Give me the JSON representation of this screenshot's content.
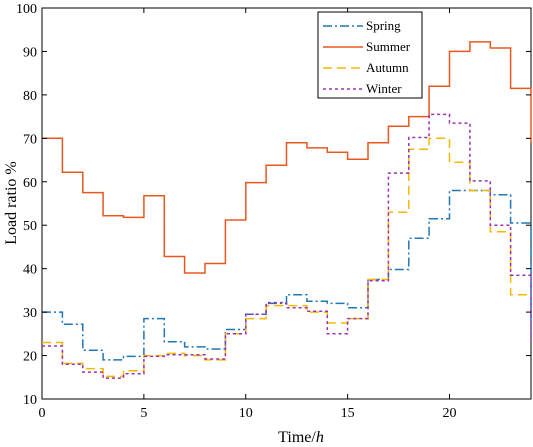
{
  "chart_data": {
    "type": "line",
    "step": true,
    "xlabel": "Time/",
    "xlabel_unit": "h",
    "ylabel": "Load ratio %",
    "xlim": [
      0,
      24
    ],
    "ylim": [
      10,
      100
    ],
    "xticks": [
      0,
      5,
      10,
      15,
      20
    ],
    "yticks": [
      10,
      20,
      30,
      40,
      50,
      60,
      70,
      80,
      90,
      100
    ],
    "grid": false,
    "legend_position": "top-right",
    "x": [
      0,
      1,
      2,
      3,
      4,
      5,
      6,
      7,
      8,
      9,
      10,
      11,
      12,
      13,
      14,
      15,
      16,
      17,
      18,
      19,
      20,
      21,
      22,
      23,
      24
    ],
    "series": [
      {
        "name": "Spring",
        "color": "#1f77b4",
        "dash": "dash-dot",
        "values": [
          30,
          27.2,
          21.2,
          19,
          19.8,
          28.5,
          23.2,
          22,
          21.5,
          26,
          29.5,
          32,
          34,
          32.5,
          32,
          31,
          37.5,
          39.8,
          47,
          51.5,
          58,
          58,
          57,
          50.5,
          28
        ]
      },
      {
        "name": "Summer",
        "color": "#e8581e",
        "dash": "solid",
        "values": [
          70,
          62.2,
          57.5,
          52.2,
          51.8,
          56.8,
          42.8,
          39,
          41.2,
          51.2,
          59.8,
          63.8,
          69,
          67.8,
          66.8,
          65.2,
          69,
          72.8,
          75,
          82,
          90,
          92.2,
          90.8,
          81.5,
          69
        ]
      },
      {
        "name": "Autumn",
        "color": "#f5b800",
        "dash": "dashed",
        "values": [
          23,
          18.2,
          17,
          15.2,
          16.5,
          20,
          20.5,
          20,
          19,
          25,
          28.5,
          31.5,
          31.5,
          30,
          27.5,
          28.5,
          37.5,
          53,
          67.5,
          70,
          64.5,
          58,
          48.5,
          34,
          34
        ]
      },
      {
        "name": "Winter",
        "color": "#9b30b0",
        "dash": "dotted",
        "values": [
          22.2,
          18,
          16.2,
          14.8,
          15.8,
          19.8,
          20.2,
          20.2,
          19.2,
          25,
          29.5,
          32.2,
          31,
          30.2,
          25,
          28.5,
          37.2,
          62,
          70.2,
          75.5,
          73.5,
          60.2,
          50,
          38.5,
          23
        ]
      }
    ]
  }
}
